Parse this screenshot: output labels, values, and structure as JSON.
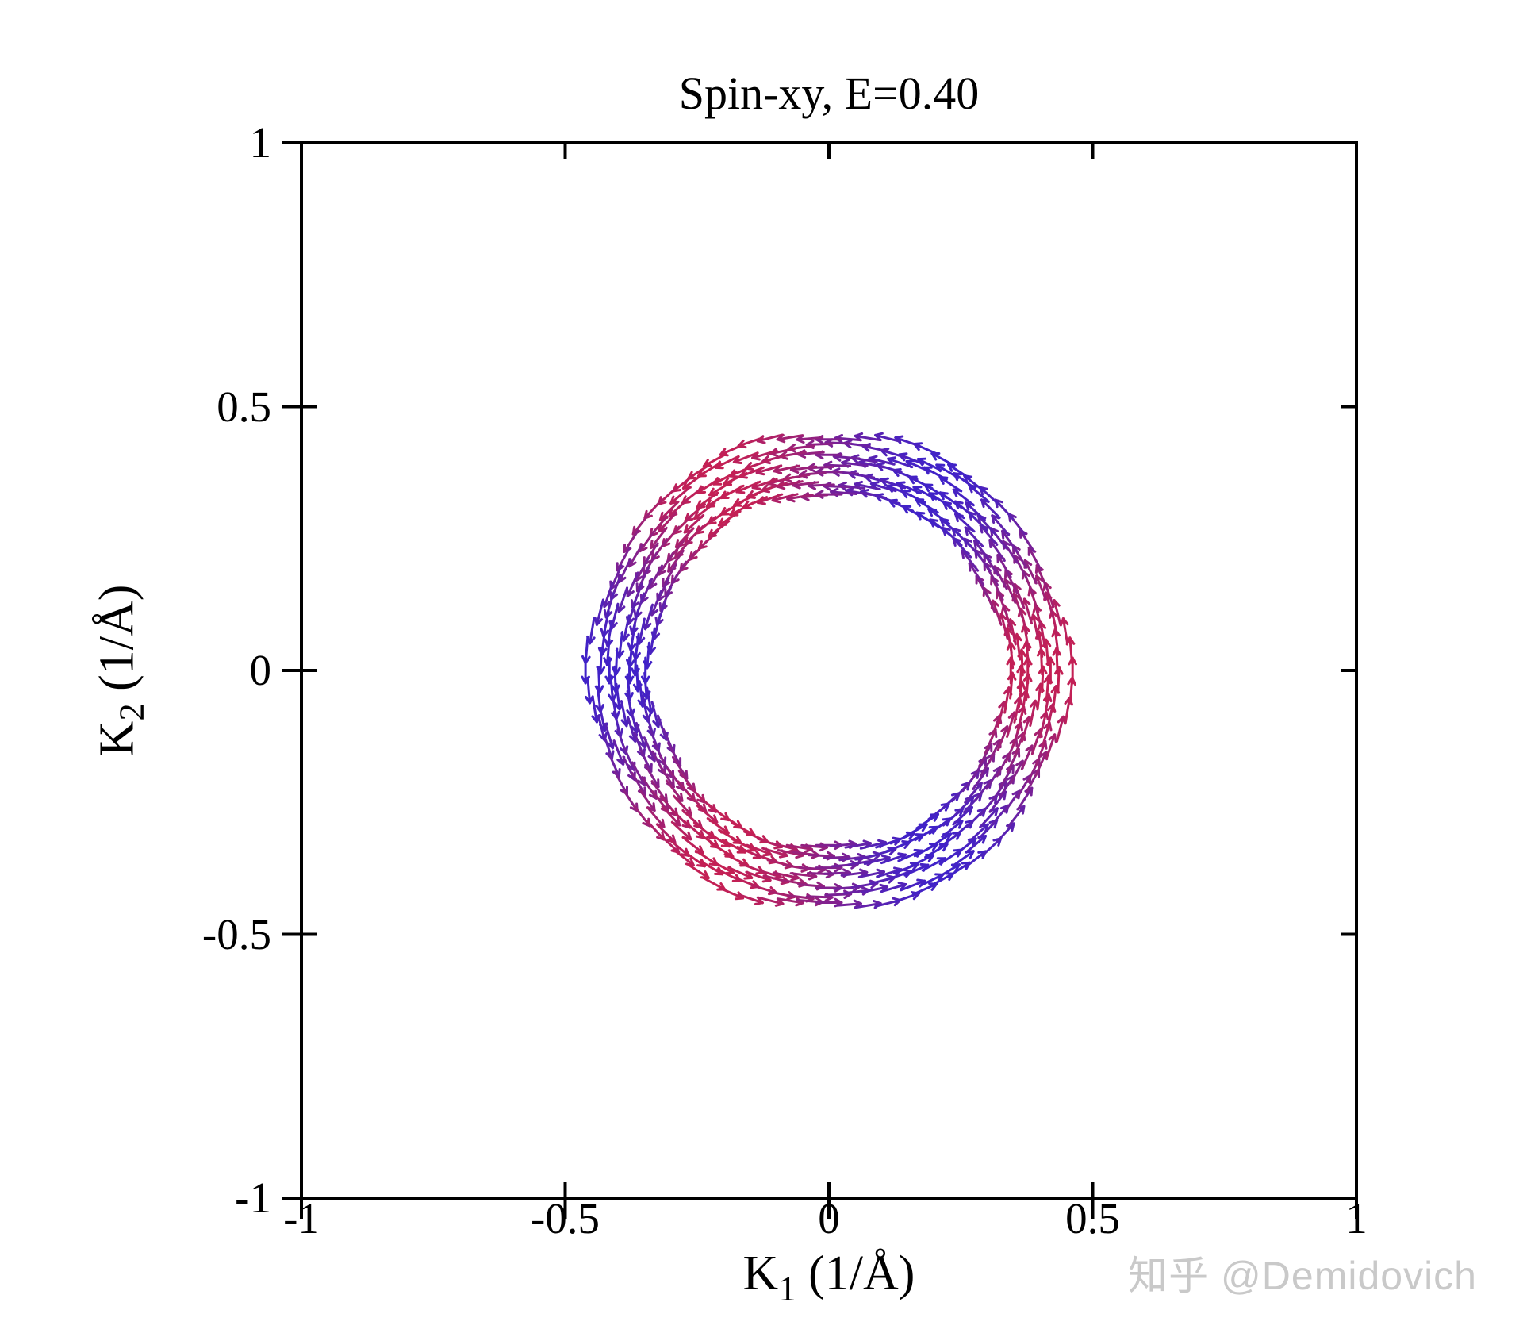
{
  "page": {
    "background": "#ffffff"
  },
  "watermark": {
    "text": "知乎 @Demidovich",
    "color": "#c9c9c9"
  },
  "chart_data": {
    "type": "scatter",
    "plot_kind": "quiver-spin-texture",
    "title": "Spin-xy, E=0.40",
    "xlabel": {
      "base": "K",
      "sub": "1",
      "rest": " (1/Å)"
    },
    "ylabel": {
      "base": "K",
      "sub": "2",
      "rest": " (1/Å)"
    },
    "xlim": [
      -1,
      1
    ],
    "ylim": [
      -1,
      1
    ],
    "xticks": [
      -1,
      -0.5,
      0,
      0.5,
      1
    ],
    "xtick_labels": [
      "-1",
      "-0.5",
      "0",
      "0.5",
      "1"
    ],
    "yticks": [
      -1,
      -0.5,
      0,
      0.5,
      1
    ],
    "ytick_labels": [
      "-1",
      "-0.5",
      "0",
      "0.5",
      "1"
    ],
    "grid": false,
    "legend": "none",
    "frame_color": "#000000",
    "quiver": {
      "description": "Spin texture on a circular constant-energy contour at E=0.40; small arrows tangent to the contour (spin-momentum locking); color modulates as cos(3*theta): red where positive, blue-violet where negative.",
      "center": [
        0,
        0
      ],
      "radius_inner": 0.34,
      "radius_outer": 0.45,
      "rings": 7,
      "arrows_per_ring": 76,
      "arrow_length": 0.048,
      "warp_cos6": 0.014,
      "jitter": 0.013,
      "color_positive": "#c42054",
      "color_negative": "#4022c8",
      "color_rule": "t=(1+cos(3*theta))/2 ; color = lerp(color_negative, color_positive, t)"
    }
  }
}
